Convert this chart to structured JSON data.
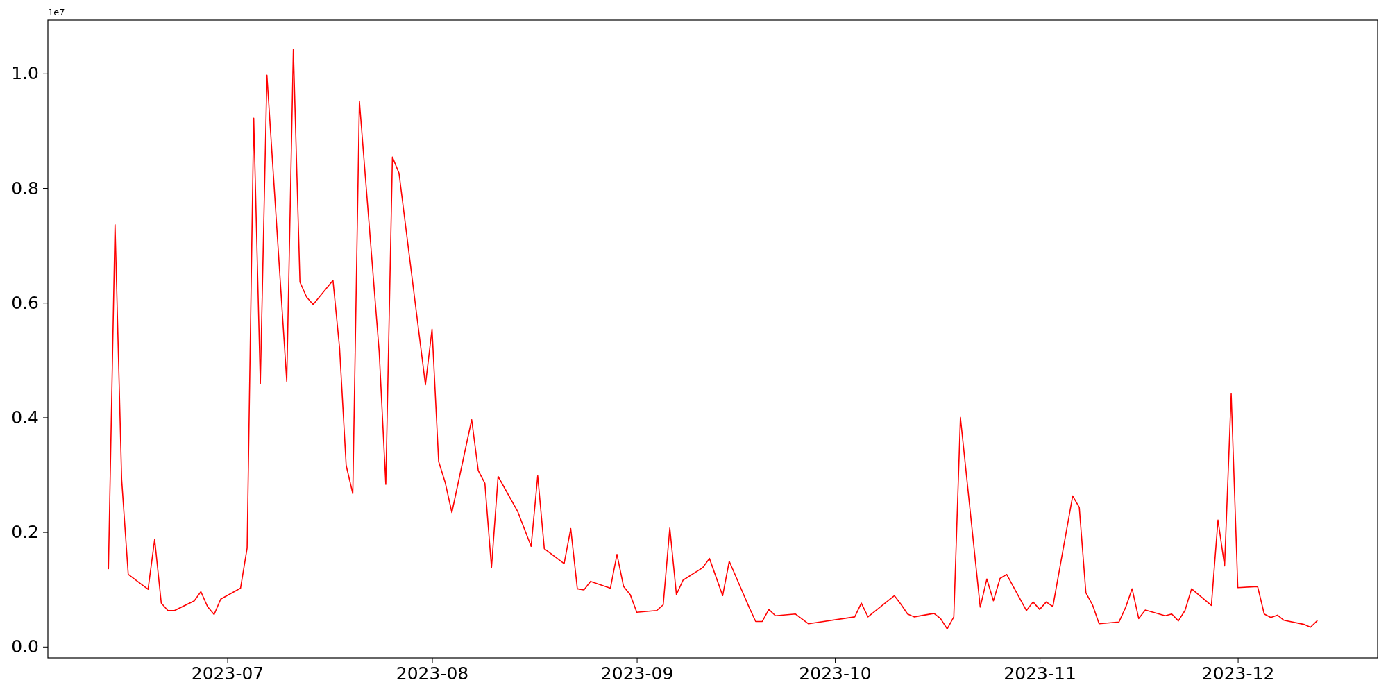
{
  "chart_data": {
    "type": "line",
    "x": [
      "2023-06-13",
      "2023-06-14",
      "2023-06-15",
      "2023-06-16",
      "2023-06-19",
      "2023-06-20",
      "2023-06-21",
      "2023-06-22",
      "2023-06-23",
      "2023-06-26",
      "2023-06-27",
      "2023-06-28",
      "2023-06-29",
      "2023-06-30",
      "2023-07-03",
      "2023-07-04",
      "2023-07-05",
      "2023-07-06",
      "2023-07-07",
      "2023-07-10",
      "2023-07-11",
      "2023-07-12",
      "2023-07-13",
      "2023-07-14",
      "2023-07-17",
      "2023-07-18",
      "2023-07-19",
      "2023-07-20",
      "2023-07-21",
      "2023-07-24",
      "2023-07-25",
      "2023-07-26",
      "2023-07-27",
      "2023-07-31",
      "2023-08-01",
      "2023-08-02",
      "2023-08-03",
      "2023-08-04",
      "2023-08-07",
      "2023-08-08",
      "2023-08-09",
      "2023-08-10",
      "2023-08-11",
      "2023-08-14",
      "2023-08-16",
      "2023-08-17",
      "2023-08-18",
      "2023-08-21",
      "2023-08-22",
      "2023-08-23",
      "2023-08-24",
      "2023-08-25",
      "2023-08-28",
      "2023-08-29",
      "2023-08-30",
      "2023-08-31",
      "2023-09-01",
      "2023-09-04",
      "2023-09-05",
      "2023-09-06",
      "2023-09-07",
      "2023-09-08",
      "2023-09-11",
      "2023-09-12",
      "2023-09-14",
      "2023-09-15",
      "2023-09-18",
      "2023-09-19",
      "2023-09-20",
      "2023-09-21",
      "2023-09-22",
      "2023-09-25",
      "2023-09-27",
      "2023-10-04",
      "2023-10-05",
      "2023-10-06",
      "2023-10-10",
      "2023-10-11",
      "2023-10-12",
      "2023-10-13",
      "2023-10-16",
      "2023-10-17",
      "2023-10-18",
      "2023-10-19",
      "2023-10-20",
      "2023-10-23",
      "2023-10-24",
      "2023-10-25",
      "2023-10-26",
      "2023-10-27",
      "2023-10-30",
      "2023-10-31",
      "2023-11-01",
      "2023-11-02",
      "2023-11-03",
      "2023-11-06",
      "2023-11-07",
      "2023-11-08",
      "2023-11-09",
      "2023-11-10",
      "2023-11-13",
      "2023-11-14",
      "2023-11-15",
      "2023-11-16",
      "2023-11-17",
      "2023-11-20",
      "2023-11-21",
      "2023-11-22",
      "2023-11-23",
      "2023-11-24",
      "2023-11-27",
      "2023-11-28",
      "2023-11-29",
      "2023-11-30",
      "2023-12-01",
      "2023-12-04",
      "2023-12-05",
      "2023-12-06",
      "2023-12-07",
      "2023-12-08",
      "2023-12-11",
      "2023-12-12",
      "2023-12-13"
    ],
    "series": [
      {
        "color": "#ff0000",
        "values": [
          0.136,
          0.736,
          0.292,
          0.126,
          0.1,
          0.187,
          0.076,
          0.063,
          0.063,
          0.08,
          0.096,
          0.07,
          0.056,
          0.083,
          0.102,
          0.172,
          0.922,
          0.459,
          0.997,
          0.463,
          1.042,
          0.636,
          0.61,
          0.597,
          0.639,
          0.521,
          0.316,
          0.267,
          0.952,
          0.514,
          0.283,
          0.854,
          0.826,
          0.457,
          0.554,
          0.323,
          0.286,
          0.234,
          0.396,
          0.307,
          0.285,
          0.138,
          0.297,
          0.235,
          0.175,
          0.298,
          0.171,
          0.145,
          0.206,
          0.101,
          0.099,
          0.114,
          0.102,
          0.161,
          0.105,
          0.091,
          0.06,
          0.063,
          0.073,
          0.207,
          0.091,
          0.116,
          0.138,
          0.154,
          0.089,
          0.149,
          0.069,
          0.044,
          0.044,
          0.065,
          0.054,
          0.057,
          0.04,
          0.052,
          0.076,
          0.052,
          0.089,
          0.074,
          0.057,
          0.052,
          0.058,
          0.049,
          0.031,
          0.052,
          0.4,
          0.069,
          0.118,
          0.08,
          0.119,
          0.126,
          0.063,
          0.078,
          0.065,
          0.078,
          0.07,
          0.263,
          0.243,
          0.094,
          0.073,
          0.04,
          0.043,
          0.068,
          0.101,
          0.049,
          0.064,
          0.054,
          0.057,
          0.045,
          0.063,
          0.101,
          0.072,
          0.221,
          0.141,
          0.441,
          0.103,
          0.105,
          0.057,
          0.051,
          0.055,
          0.046,
          0.039,
          0.034,
          0.045
        ]
      }
    ],
    "xlim": [
      "2023-06-03T20:00",
      "2023-12-22T04:00"
    ],
    "xticks": [
      "2023-07",
      "2023-08",
      "2023-09",
      "2023-10",
      "2023-11",
      "2023-12"
    ],
    "ylim": [
      -0.0196,
      1.093
    ],
    "yticks": [
      {
        "value": 0,
        "label": "0.0"
      },
      0.2,
      0.4,
      0.6,
      0.8,
      {
        "value": 1,
        "label": "1.0"
      }
    ],
    "annotations": [
      "1e7"
    ],
    "grid": false,
    "marker": "none",
    "line_style": "solid"
  }
}
